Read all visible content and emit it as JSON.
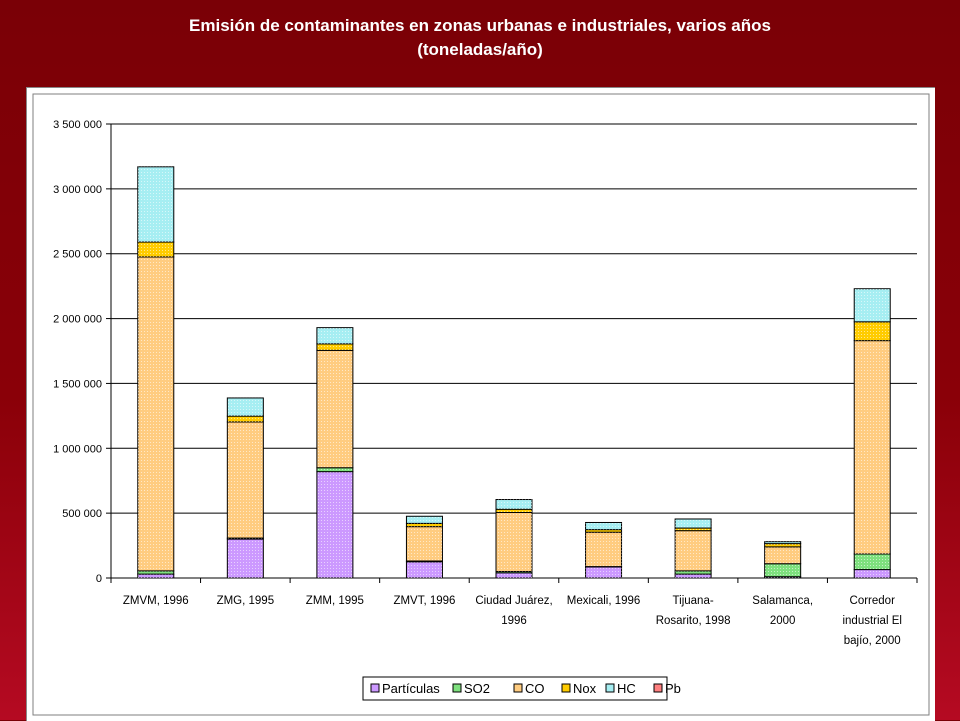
{
  "title": {
    "line1": "Emisión de contaminantes en zonas urbanas e industriales, varios años",
    "line2": "(toneladas/año)"
  },
  "colors": {
    "Partículas": "#cc99ff",
    "SO2": "#7ee07e",
    "CO": "#ffcc80",
    "Nox": "#ffcc00",
    "HC": "#a6eef2",
    "Pb": "#ff8080"
  },
  "chart_data": {
    "type": "bar",
    "stacked": true,
    "categories": [
      [
        "ZMVM, 1996"
      ],
      [
        "ZMG, 1995"
      ],
      [
        "ZMM, 1995"
      ],
      [
        "ZMVT, 1996"
      ],
      [
        "Ciudad Juárez,",
        "1996"
      ],
      [
        "Mexicali, 1996"
      ],
      [
        "Tijuana-",
        "Rosarito, 1998"
      ],
      [
        "Salamanca,",
        "2000"
      ],
      [
        "Corredor",
        "industrial El",
        "bajío, 2000"
      ]
    ],
    "series": [
      {
        "name": "Partículas",
        "values": [
          30000,
          300000,
          820000,
          125000,
          40000,
          85000,
          30000,
          10000,
          65000
        ]
      },
      {
        "name": "SO2",
        "values": [
          25000,
          8000,
          30000,
          6000,
          10000,
          3000,
          25000,
          100000,
          120000
        ]
      },
      {
        "name": "CO",
        "values": [
          2420000,
          895000,
          905000,
          265000,
          455000,
          265000,
          310000,
          130000,
          1645000
        ]
      },
      {
        "name": "Nox",
        "values": [
          115000,
          45000,
          50000,
          25000,
          25000,
          20000,
          20000,
          25000,
          145000
        ]
      },
      {
        "name": "HC",
        "values": [
          580000,
          140000,
          125000,
          55000,
          75000,
          55000,
          70000,
          15000,
          255000
        ]
      },
      {
        "name": "Pb",
        "values": [
          0,
          0,
          0,
          0,
          0,
          0,
          0,
          0,
          0
        ]
      }
    ],
    "ylim": [
      0,
      3500000
    ],
    "yticks": [
      0,
      500000,
      1000000,
      1500000,
      2000000,
      2500000,
      3000000,
      3500000
    ],
    "ytick_labels": [
      "0",
      "500 000",
      "1 000 000",
      "1 500 000",
      "2 000 000",
      "2 500 000",
      "3 000 000",
      "3 500 000"
    ],
    "grid": true,
    "legend": [
      "Partículas",
      "SO2",
      "CO",
      "Nox",
      "HC",
      "Pb"
    ],
    "legend_position": "bottom"
  }
}
